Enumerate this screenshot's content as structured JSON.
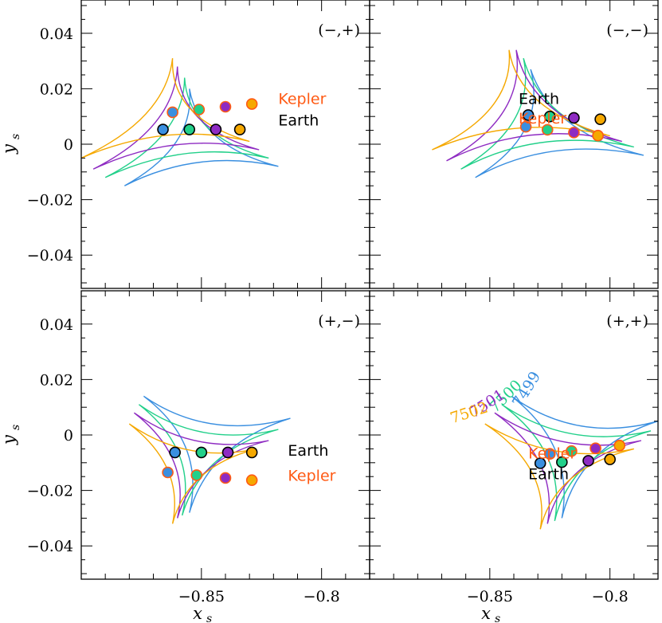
{
  "colors": {
    "c7499": "#3a8fe0",
    "c7500": "#22d08a",
    "c7501": "#8e2bc2",
    "c7502": "#f5a800",
    "earth_text": "#000000",
    "kepler_text": "#ff5a14"
  },
  "axes": {
    "xlabel": "x",
    "xlabel_sub": "s",
    "ylabel": "y",
    "ylabel_sub": "s",
    "xlim": [
      -0.9,
      -0.78
    ],
    "ylim": [
      -0.052,
      0.052
    ],
    "x_ticks": [
      {
        "value": -0.85,
        "label": "−0.85"
      },
      {
        "value": -0.8,
        "label": "−0.8"
      }
    ],
    "y_ticks": [
      {
        "value": 0.04,
        "label": "0.04"
      },
      {
        "value": 0.02,
        "label": "0.02"
      },
      {
        "value": 0,
        "label": "0"
      },
      {
        "value": -0.02,
        "label": "−0.02"
      },
      {
        "value": -0.04,
        "label": "−0.04"
      }
    ]
  },
  "chart_data": [
    {
      "type": "scatter",
      "panel": "(−,+)",
      "caustic_epochs": [
        "7499",
        "7500",
        "7501",
        "7502"
      ],
      "earth_label": "Earth",
      "kepler_label": "Kepler",
      "earth_points": [
        {
          "x": -0.866,
          "y": 0.0053,
          "color": "#3a8fe0"
        },
        {
          "x": -0.855,
          "y": 0.0053,
          "color": "#22d08a"
        },
        {
          "x": -0.844,
          "y": 0.0053,
          "color": "#8e2bc2"
        },
        {
          "x": -0.834,
          "y": 0.0053,
          "color": "#f5a800"
        }
      ],
      "kepler_points": [
        {
          "x": -0.862,
          "y": 0.0115,
          "color": "#3a8fe0"
        },
        {
          "x": -0.851,
          "y": 0.0125,
          "color": "#22d08a"
        },
        {
          "x": -0.84,
          "y": 0.0135,
          "color": "#8e2bc2"
        },
        {
          "x": -0.829,
          "y": 0.0145,
          "color": "#f5a800"
        }
      ]
    },
    {
      "type": "scatter",
      "panel": "(−,−)",
      "caustic_epochs": [
        "7499",
        "7500",
        "7501",
        "7502"
      ],
      "earth_label": "Earth",
      "kepler_label": "Kepler",
      "earth_points": [
        {
          "x": -0.834,
          "y": 0.0105,
          "color": "#3a8fe0"
        },
        {
          "x": -0.825,
          "y": 0.01,
          "color": "#22d08a"
        },
        {
          "x": -0.815,
          "y": 0.0095,
          "color": "#8e2bc2"
        },
        {
          "x": -0.804,
          "y": 0.009,
          "color": "#f5a800"
        }
      ],
      "kepler_points": [
        {
          "x": -0.835,
          "y": 0.0063,
          "color": "#3a8fe0"
        },
        {
          "x": -0.826,
          "y": 0.0052,
          "color": "#22d08a"
        },
        {
          "x": -0.815,
          "y": 0.0042,
          "color": "#8e2bc2"
        },
        {
          "x": -0.805,
          "y": 0.0031,
          "color": "#f5a800"
        }
      ]
    },
    {
      "type": "scatter",
      "panel": "(+,−)",
      "caustic_epochs": [
        "7499",
        "7500",
        "7501",
        "7502"
      ],
      "earth_label": "Earth",
      "kepler_label": "Kepler",
      "earth_points": [
        {
          "x": -0.861,
          "y": -0.0063,
          "color": "#3a8fe0"
        },
        {
          "x": -0.85,
          "y": -0.0063,
          "color": "#22d08a"
        },
        {
          "x": -0.839,
          "y": -0.0063,
          "color": "#8e2bc2"
        },
        {
          "x": -0.829,
          "y": -0.0063,
          "color": "#f5a800"
        }
      ],
      "kepler_points": [
        {
          "x": -0.864,
          "y": -0.0135,
          "color": "#3a8fe0"
        },
        {
          "x": -0.852,
          "y": -0.0145,
          "color": "#22d08a"
        },
        {
          "x": -0.84,
          "y": -0.0155,
          "color": "#8e2bc2"
        },
        {
          "x": -0.829,
          "y": -0.0163,
          "color": "#f5a800"
        }
      ]
    },
    {
      "type": "scatter",
      "panel": "(+,+)",
      "caustic_epochs": [
        "7499",
        "7500",
        "7501",
        "7502"
      ],
      "earth_label": "Earth",
      "kepler_label": "Kepler",
      "earth_points": [
        {
          "x": -0.829,
          "y": -0.0102,
          "color": "#3a8fe0"
        },
        {
          "x": -0.82,
          "y": -0.0098,
          "color": "#22d08a"
        },
        {
          "x": -0.809,
          "y": -0.0093,
          "color": "#8e2bc2"
        },
        {
          "x": -0.8,
          "y": -0.0088,
          "color": "#f5a800"
        }
      ],
      "kepler_points": [
        {
          "x": -0.825,
          "y": -0.0068,
          "color": "#3a8fe0"
        },
        {
          "x": -0.816,
          "y": -0.0058,
          "color": "#22d08a"
        },
        {
          "x": -0.806,
          "y": -0.0048,
          "color": "#8e2bc2"
        },
        {
          "x": -0.796,
          "y": -0.0038,
          "color": "#f5a800"
        }
      ]
    }
  ]
}
